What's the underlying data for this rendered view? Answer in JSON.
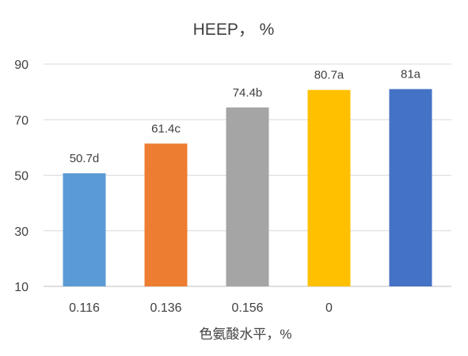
{
  "chart_data": {
    "type": "bar",
    "title": "HEEP，  %",
    "xlabel": "色氨酸水平，%",
    "ylabel": "",
    "categories": [
      "0.116",
      "0.136",
      "0.156",
      "0",
      ""
    ],
    "values": [
      50.7,
      61.4,
      74.4,
      80.7,
      81
    ],
    "data_labels": [
      "50.7d",
      "61.4c",
      "74.4b",
      "80.7a",
      "81a"
    ],
    "bar_colors": [
      "#5B9BD5",
      "#ED7D31",
      "#A5A5A5",
      "#FFC000",
      "#4472C4"
    ],
    "y_ticks": [
      10,
      30,
      50,
      70,
      90
    ],
    "ylim": [
      10,
      90
    ],
    "grid": true,
    "legend": "none"
  }
}
